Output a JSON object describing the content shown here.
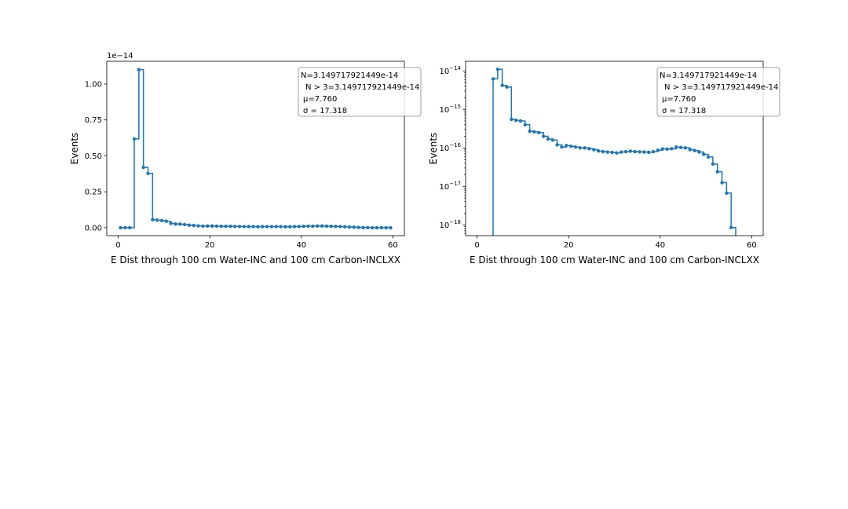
{
  "colors": {
    "series": "#1f77b4",
    "axis": "#000000",
    "legend_border": "#888888"
  },
  "chart_data": [
    {
      "type": "line",
      "step": "post",
      "scale": "linear",
      "xlabel": "E Dist through 100 cm Water-INC and 100 cm Carbon-INCLXX",
      "ylabel": "Events",
      "xlim": [
        -2.5,
        62.5
      ],
      "ylim": [
        -0.055,
        1.1583
      ],
      "y_multiplier": "1e−14",
      "xticks": [
        0,
        20,
        40,
        60
      ],
      "xtick_labels": [
        "0",
        "20",
        "40",
        "60"
      ],
      "yticks": [
        0.0,
        0.25,
        0.5,
        0.75,
        1.0
      ],
      "ytick_labels": [
        "0.00",
        "0.25",
        "0.50",
        "0.75",
        "1.00"
      ],
      "legend_lines": [
        "N=3.149717921449e-14",
        "N > 3=3.149717921449e-14",
        "μ=7.760",
        "σ = 17.318"
      ],
      "legend_position": "upper-right",
      "x": [
        0.5,
        1.5,
        2.5,
        3.5,
        4.5,
        5.5,
        6.5,
        7.5,
        8.5,
        9.5,
        10.5,
        11.5,
        12.5,
        13.5,
        14.5,
        15.5,
        16.5,
        17.5,
        18.5,
        19.5,
        20.5,
        21.5,
        22.5,
        23.5,
        24.5,
        25.5,
        26.5,
        27.5,
        28.5,
        29.5,
        30.5,
        31.5,
        32.5,
        33.5,
        34.5,
        35.5,
        36.5,
        37.5,
        38.5,
        39.5,
        40.5,
        41.5,
        42.5,
        43.5,
        44.5,
        45.5,
        46.5,
        47.5,
        48.5,
        49.5,
        50.5,
        51.5,
        52.5,
        53.5,
        54.5,
        55.5,
        56.5,
        57.5,
        58.5,
        59.5
      ],
      "values": [
        0,
        0,
        0,
        0.618,
        1.1,
        0.42,
        0.378,
        0.056,
        0.053,
        0.05,
        0.045,
        0.03,
        0.026,
        0.025,
        0.022,
        0.018,
        0.016,
        0.013,
        0.011,
        0.012,
        0.012,
        0.011,
        0.01,
        0.01,
        0.01,
        0.009,
        0.009,
        0.008,
        0.008,
        0.008,
        0.007,
        0.008,
        0.008,
        0.008,
        0.008,
        0.008,
        0.007,
        0.007,
        0.008,
        0.009,
        0.01,
        0.011,
        0.011,
        0.012,
        0.012,
        0.011,
        0.01,
        0.009,
        0.008,
        0.007,
        0.005,
        0.004,
        0.002,
        0.001,
        0.0007,
        0.0001,
        0,
        0,
        0,
        0
      ]
    },
    {
      "type": "line",
      "step": "post",
      "scale": "log",
      "xlabel": "E Dist through 100 cm Water-INC and 100 cm Carbon-INCLXX",
      "ylabel": "Events",
      "xlim": [
        -2.5,
        62.5
      ],
      "ylim_log10": [
        -18.28,
        -13.75
      ],
      "xticks": [
        0,
        20,
        40,
        60
      ],
      "xtick_labels": [
        "0",
        "20",
        "40",
        "60"
      ],
      "yticks_log10": [
        -18,
        -17,
        -16,
        -15,
        -14
      ],
      "ytick_base": "10",
      "ytick_exponents": [
        "−18",
        "−17",
        "−16",
        "−15",
        "−14"
      ],
      "legend_lines": [
        "N=3.149717921449e-14",
        "N > 3=3.149717921449e-14",
        "μ=7.760",
        "σ = 17.318"
      ],
      "legend_position": "upper-right",
      "x": [
        3.5,
        4.5,
        5.5,
        6.5,
        7.5,
        8.5,
        9.5,
        10.5,
        11.5,
        12.5,
        13.5,
        14.5,
        15.5,
        16.5,
        17.5,
        18.5,
        19.5,
        20.5,
        21.5,
        22.5,
        23.5,
        24.5,
        25.5,
        26.5,
        27.5,
        28.5,
        29.5,
        30.5,
        31.5,
        32.5,
        33.5,
        34.5,
        35.5,
        36.5,
        37.5,
        38.5,
        39.5,
        40.5,
        41.5,
        42.5,
        43.5,
        44.5,
        45.5,
        46.5,
        47.5,
        48.5,
        49.5,
        50.5,
        51.5,
        52.5,
        53.5,
        54.5,
        55.5
      ],
      "values": [
        6.2e-15,
        1.1e-14,
        4.2e-15,
        3.8e-15,
        5.5e-16,
        5.2e-16,
        5e-16,
        4e-16,
        2.7e-16,
        2.6e-16,
        2.5e-16,
        2e-16,
        1.7e-16,
        1.6e-16,
        1.2e-16,
        1.05e-16,
        1.15e-16,
        1.1e-16,
        1.05e-16,
        1e-16,
        1e-16,
        9.5e-17,
        9e-17,
        8.3e-17,
        8e-17,
        7.8e-17,
        7.6e-17,
        7.4e-17,
        7.8e-17,
        8e-17,
        8.2e-17,
        8e-17,
        7.9e-17,
        7.8e-17,
        7.7e-17,
        8e-17,
        8.7e-17,
        9.4e-17,
        9.3e-17,
        9.5e-17,
        1.05e-16,
        1.02e-16,
        1e-16,
        9e-17,
        8.5e-17,
        7.8e-17,
        6.8e-17,
        5.8e-17,
        3.8e-17,
        2.4e-17,
        1.25e-17,
        6.7e-18,
        8.5e-19
      ]
    }
  ]
}
